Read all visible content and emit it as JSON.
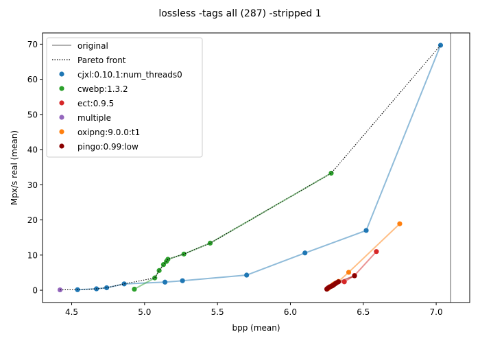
{
  "chart_data": {
    "type": "scatter",
    "title": "lossless -tags all (287) -stripped 1",
    "xlabel": "bpp (mean)",
    "ylabel": "Mpx/s real (mean)",
    "xlim": [
      4.3,
      7.23
    ],
    "ylim": [
      -3.5,
      73.2
    ],
    "xticks": [
      4.5,
      5.0,
      5.5,
      6.0,
      6.5,
      7.0
    ],
    "xtick_labels": [
      "4.5",
      "5.0",
      "5.5",
      "6.0",
      "6.5",
      "7.0"
    ],
    "yticks": [
      0,
      10,
      20,
      30,
      40,
      50,
      60,
      70
    ],
    "ytick_labels": [
      "0",
      "10",
      "20",
      "30",
      "40",
      "50",
      "60",
      "70"
    ],
    "grid": false,
    "legend_position": "top-left",
    "original": {
      "name": "original",
      "x": 7.1,
      "color": "#808080"
    },
    "pareto": {
      "name": "Pareto front",
      "points": [
        [
          4.42,
          0.1
        ],
        [
          4.54,
          0.15
        ],
        [
          4.67,
          0.4
        ],
        [
          4.74,
          0.7
        ],
        [
          4.86,
          1.8
        ],
        [
          5.07,
          3.5
        ],
        [
          5.1,
          5.6
        ],
        [
          5.13,
          7.3
        ],
        [
          5.15,
          8.2
        ],
        [
          5.16,
          8.8
        ],
        [
          5.27,
          10.3
        ],
        [
          5.45,
          13.4
        ],
        [
          6.28,
          33.3
        ],
        [
          7.03,
          69.7
        ]
      ]
    },
    "series": [
      {
        "name": "cjxl:0.10.1:num_threads0",
        "color": "#1f77b4",
        "line": true,
        "points": [
          [
            4.54,
            0.15
          ],
          [
            4.67,
            0.4
          ],
          [
            4.74,
            0.7
          ],
          [
            4.86,
            1.8
          ],
          [
            5.14,
            2.3
          ],
          [
            5.26,
            2.7
          ],
          [
            5.7,
            4.3
          ],
          [
            6.1,
            10.6
          ],
          [
            6.52,
            17.0
          ],
          [
            7.03,
            69.7
          ]
        ]
      },
      {
        "name": "cwebp:1.3.2",
        "color": "#2ca02c",
        "line": true,
        "points": [
          [
            4.93,
            0.3
          ],
          [
            5.07,
            3.5
          ],
          [
            5.1,
            5.6
          ],
          [
            5.13,
            7.3
          ],
          [
            5.15,
            8.2
          ],
          [
            5.16,
            8.8
          ],
          [
            5.27,
            10.3
          ],
          [
            5.45,
            13.4
          ],
          [
            6.28,
            33.3
          ]
        ]
      },
      {
        "name": "ect:0.9.5",
        "color": "#d62728",
        "line": true,
        "points": [
          [
            6.25,
            0.4
          ],
          [
            6.27,
            1.0
          ],
          [
            6.29,
            1.5
          ],
          [
            6.31,
            2.0
          ],
          [
            6.37,
            2.4
          ],
          [
            6.44,
            4.2
          ],
          [
            6.59,
            11.0
          ]
        ]
      },
      {
        "name": "multiple",
        "color": "#9467bd",
        "line": false,
        "points": [
          [
            4.42,
            0.1
          ]
        ]
      },
      {
        "name": "oxipng:9.0.0:t1",
        "color": "#ff7f0e",
        "line": true,
        "points": [
          [
            6.26,
            0.5
          ],
          [
            6.28,
            1.2
          ],
          [
            6.3,
            1.8
          ],
          [
            6.33,
            2.5
          ],
          [
            6.4,
            5.1
          ],
          [
            6.75,
            18.9
          ]
        ]
      },
      {
        "name": "pingo:0.99:low",
        "color": "#8b0000",
        "line": true,
        "points": [
          [
            6.25,
            0.3
          ],
          [
            6.26,
            0.7
          ],
          [
            6.27,
            0.9
          ],
          [
            6.28,
            1.1
          ],
          [
            6.29,
            1.3
          ],
          [
            6.3,
            1.6
          ],
          [
            6.31,
            1.9
          ],
          [
            6.32,
            2.2
          ],
          [
            6.33,
            2.4
          ],
          [
            6.44,
            4.1
          ]
        ]
      }
    ]
  }
}
